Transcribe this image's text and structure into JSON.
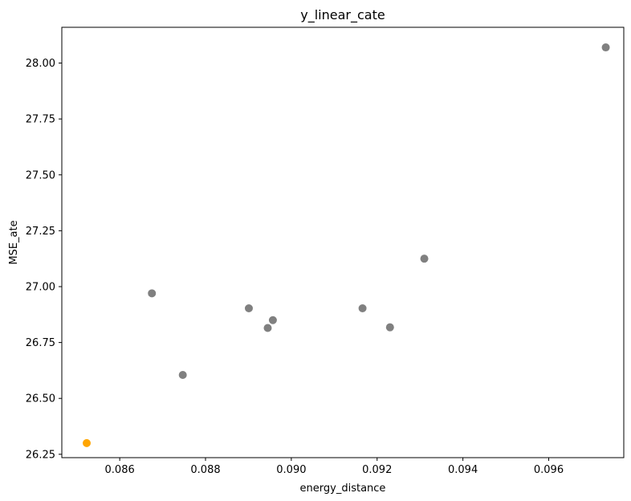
{
  "chart_data": {
    "type": "scatter",
    "title": "y_linear_cate",
    "xlabel": "energy_distance",
    "ylabel": "MSE_ate",
    "xlim": [
      0.08465,
      0.09775
    ],
    "ylim": [
      26.235,
      28.16
    ],
    "x_ticks": [
      0.086,
      0.088,
      0.09,
      0.092,
      0.094,
      0.096
    ],
    "x_tick_labels": [
      "0.086",
      "0.088",
      "0.090",
      "0.092",
      "0.094",
      "0.096"
    ],
    "y_ticks": [
      26.25,
      26.5,
      26.75,
      27.0,
      27.25,
      27.5,
      27.75,
      28.0
    ],
    "y_tick_labels": [
      "26.25",
      "26.50",
      "26.75",
      "27.00",
      "27.25",
      "27.50",
      "27.75",
      "28.00"
    ],
    "grid": false,
    "points": [
      {
        "x": 0.08523,
        "y": 26.3,
        "highlight": true
      },
      {
        "x": 0.08675,
        "y": 26.97,
        "highlight": false
      },
      {
        "x": 0.08747,
        "y": 26.605,
        "highlight": false
      },
      {
        "x": 0.08901,
        "y": 26.903,
        "highlight": false
      },
      {
        "x": 0.08945,
        "y": 26.815,
        "highlight": false
      },
      {
        "x": 0.08957,
        "y": 26.85,
        "highlight": false
      },
      {
        "x": 0.09166,
        "y": 26.903,
        "highlight": false
      },
      {
        "x": 0.0923,
        "y": 26.818,
        "highlight": false
      },
      {
        "x": 0.0931,
        "y": 27.125,
        "highlight": false
      },
      {
        "x": 0.09733,
        "y": 28.07,
        "highlight": false
      }
    ],
    "colors": {
      "default": "#808080",
      "highlight": "#ffa500"
    }
  }
}
